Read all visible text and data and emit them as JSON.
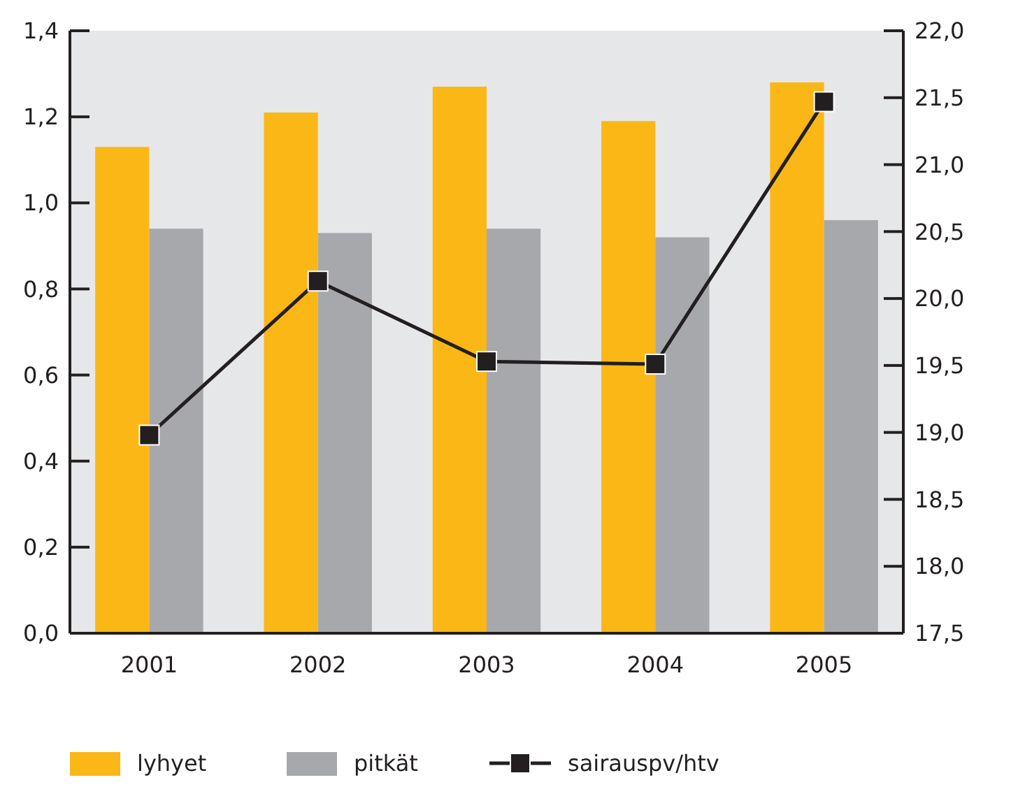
{
  "chart_data": {
    "type": "bar",
    "categories": [
      "2001",
      "2002",
      "2003",
      "2004",
      "2005"
    ],
    "series": [
      {
        "name": "lyhyet",
        "color": "#fbb715",
        "values": [
          1.13,
          1.21,
          1.27,
          1.19,
          1.28
        ]
      },
      {
        "name": "pitkät",
        "color": "#a7a8ab",
        "values": [
          0.94,
          0.93,
          0.94,
          0.92,
          0.96
        ]
      },
      {
        "name": "sairauspv/htv",
        "type": "line",
        "axis": "y2",
        "color": "#231f20",
        "marker": "square",
        "values": [
          18.98,
          20.13,
          19.53,
          19.51,
          21.47
        ]
      }
    ],
    "ylim": [
      0,
      1.4
    ],
    "yticks": [
      {
        "value": 0,
        "label": "0,0"
      },
      {
        "value": 0.2,
        "label": "0,2"
      },
      {
        "value": 0.4,
        "label": "0,4"
      },
      {
        "value": 0.6,
        "label": "0,6"
      },
      {
        "value": 0.8,
        "label": "0,8"
      },
      {
        "value": 1,
        "label": "1,0"
      },
      {
        "value": 1.2,
        "label": "1,2"
      },
      {
        "value": 1.4,
        "label": "1,4"
      }
    ],
    "y2lim": [
      17.5,
      22
    ],
    "y2ticks": [
      {
        "value": 17.5,
        "label": "17,5"
      },
      {
        "value": 18,
        "label": "18,0"
      },
      {
        "value": 18.5,
        "label": "18,5"
      },
      {
        "value": 19,
        "label": "19,0"
      },
      {
        "value": 19.5,
        "label": "19,5"
      },
      {
        "value": 20,
        "label": "20,0"
      },
      {
        "value": 20.5,
        "label": "20,5"
      },
      {
        "value": 21,
        "label": "21,0"
      },
      {
        "value": 21.5,
        "label": "21,5"
      },
      {
        "value": 22,
        "label": "22,0"
      }
    ],
    "grid": false,
    "legend": "bottom"
  }
}
